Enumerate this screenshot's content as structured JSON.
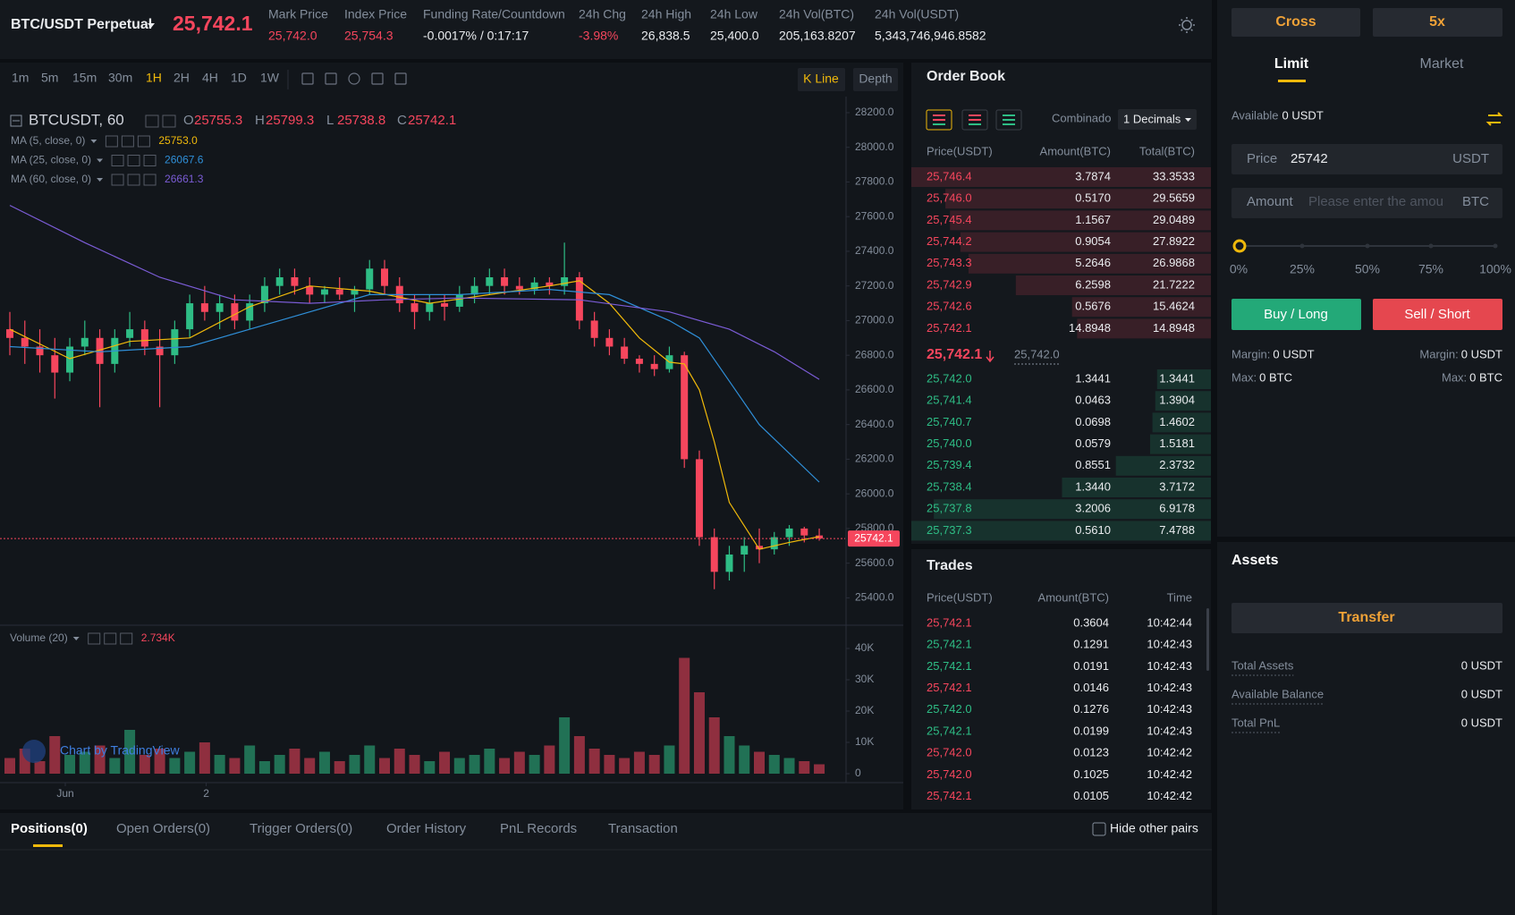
{
  "header": {
    "symbol": "BTC/USDT Perpetual",
    "last_price": "25,742.1",
    "stats": [
      {
        "label": "Mark Price",
        "value": "25,742.0",
        "color": "#f6465d"
      },
      {
        "label": "Index Price",
        "value": "25,754.3",
        "color": "#f6465d"
      },
      {
        "label": "Funding Rate/Countdown",
        "value": "-0.0017% / 0:17:17",
        "color": "#eaecef"
      },
      {
        "label": "24h Chg",
        "value": "-3.98%",
        "color": "#f6465d"
      },
      {
        "label": "24h High",
        "value": "26,838.5",
        "color": "#eaecef"
      },
      {
        "label": "24h Low",
        "value": "25,400.0",
        "color": "#eaecef"
      },
      {
        "label": "24h Vol(BTC)",
        "value": "205,163.8207",
        "color": "#eaecef"
      },
      {
        "label": "24h Vol(USDT)",
        "value": "5,343,746,946.8582",
        "color": "#eaecef"
      }
    ]
  },
  "toolbar": {
    "intervals": [
      "1m",
      "5m",
      "15m",
      "30m",
      "1H",
      "2H",
      "4H",
      "1D",
      "1W"
    ],
    "active_interval": "1H",
    "views": [
      "K Line",
      "Depth"
    ]
  },
  "chart_data": {
    "type": "candlestick",
    "symbol_label": "BTCUSDT, 60",
    "ohlc_legend": [
      {
        "key": "O",
        "value": "25755.3"
      },
      {
        "key": "H",
        "value": "25799.3"
      },
      {
        "key": "L",
        "value": "25738.8"
      },
      {
        "key": "C",
        "value": "25742.1"
      }
    ],
    "up_color": "#2ebd85",
    "down_color": "#f6465d",
    "ylim": [
      25242,
      28334
    ],
    "yticks": [
      {
        "value": 28200,
        "label": "28200.0"
      },
      {
        "value": 28000,
        "label": "28000.0"
      },
      {
        "value": 27800,
        "label": "27800.0"
      },
      {
        "value": 27600,
        "label": "27600.0"
      },
      {
        "value": 27400,
        "label": "27400.0"
      },
      {
        "value": 27200,
        "label": "27200.0"
      },
      {
        "value": 27000,
        "label": "27000.0"
      },
      {
        "value": 26800,
        "label": "26800.0"
      },
      {
        "value": 26600,
        "label": "26600.0"
      },
      {
        "value": 26400,
        "label": "26400.0"
      },
      {
        "value": 26200,
        "label": "26200.0"
      },
      {
        "value": 26000,
        "label": "26000.0"
      },
      {
        "value": 25800,
        "label": "25800.0"
      },
      {
        "value": 25600,
        "label": "25600.0"
      },
      {
        "value": 25400,
        "label": "25400.0"
      }
    ],
    "xticks": [
      {
        "value": 3.7,
        "label": "Jun"
      },
      {
        "value": 13.1,
        "label": "2"
      }
    ],
    "last_price": 25742.1,
    "last_price_label": "25742.1",
    "ohlc": [
      [
        26950,
        27050,
        26800,
        26900
      ],
      [
        26900,
        27000,
        26750,
        26850
      ],
      [
        26850,
        26950,
        26700,
        26800
      ],
      [
        26800,
        26900,
        26550,
        26700
      ],
      [
        26700,
        26900,
        26650,
        26850
      ],
      [
        26850,
        27000,
        26800,
        26900
      ],
      [
        26900,
        26950,
        26500,
        26750
      ],
      [
        26750,
        26950,
        26700,
        26900
      ],
      [
        26900,
        27050,
        26850,
        26950
      ],
      [
        26950,
        27000,
        26800,
        26850
      ],
      [
        26850,
        26950,
        26500,
        26800
      ],
      [
        26800,
        27000,
        26750,
        26950
      ],
      [
        26950,
        27150,
        26900,
        27100
      ],
      [
        27100,
        27200,
        27000,
        27050
      ],
      [
        27050,
        27150,
        26950,
        27100
      ],
      [
        27100,
        27150,
        26950,
        27000
      ],
      [
        27000,
        27150,
        26950,
        27100
      ],
      [
        27100,
        27250,
        27050,
        27200
      ],
      [
        27200,
        27300,
        27150,
        27250
      ],
      [
        27250,
        27300,
        27150,
        27200
      ],
      [
        27200,
        27250,
        27100,
        27150
      ],
      [
        27150,
        27200,
        27100,
        27180
      ],
      [
        27180,
        27250,
        27120,
        27150
      ],
      [
        27150,
        27200,
        27050,
        27180
      ],
      [
        27180,
        27350,
        27150,
        27300
      ],
      [
        27300,
        27350,
        27150,
        27200
      ],
      [
        27200,
        27250,
        27050,
        27100
      ],
      [
        27100,
        27150,
        26950,
        27050
      ],
      [
        27050,
        27150,
        27000,
        27100
      ],
      [
        27100,
        27150,
        27000,
        27080
      ],
      [
        27080,
        27200,
        27050,
        27150
      ],
      [
        27150,
        27250,
        27100,
        27200
      ],
      [
        27200,
        27300,
        27150,
        27250
      ],
      [
        27250,
        27300,
        27150,
        27200
      ],
      [
        27200,
        27250,
        27150,
        27180
      ],
      [
        27180,
        27250,
        27150,
        27220
      ],
      [
        27220,
        27250,
        27150,
        27200
      ],
      [
        27200,
        27450,
        27150,
        27250
      ],
      [
        27250,
        27280,
        26950,
        27000
      ],
      [
        27000,
        27050,
        26850,
        26900
      ],
      [
        26900,
        26950,
        26800,
        26850
      ],
      [
        26850,
        26900,
        26750,
        26780
      ],
      [
        26780,
        26800,
        26700,
        26750
      ],
      [
        26750,
        26800,
        26680,
        26720
      ],
      [
        26720,
        26850,
        26700,
        26800
      ],
      [
        26800,
        26820,
        26150,
        26200
      ],
      [
        26200,
        26250,
        25700,
        25750
      ],
      [
        25750,
        25800,
        25450,
        25550
      ],
      [
        25550,
        25700,
        25500,
        25650
      ],
      [
        25650,
        25750,
        25550,
        25700
      ],
      [
        25700,
        25800,
        25600,
        25680
      ],
      [
        25680,
        25780,
        25650,
        25750
      ],
      [
        25750,
        25820,
        25700,
        25800
      ],
      [
        25800,
        25810,
        25720,
        25760
      ],
      [
        25760,
        25800,
        25730,
        25742.1
      ]
    ],
    "lines": [
      {
        "name": "MA (5, close, 0)",
        "color": "#f0b90b",
        "last_label": "25753.0",
        "x": [
          0,
          4,
          8,
          12,
          16,
          20,
          24,
          28,
          32,
          36,
          38,
          40,
          42,
          44,
          45,
          46,
          47,
          48,
          50,
          52,
          54
        ],
        "values": [
          26950,
          26780,
          26880,
          26900,
          27080,
          27200,
          27170,
          27100,
          27150,
          27200,
          27230,
          27100,
          26900,
          26760,
          26750,
          26600,
          26300,
          25950,
          25680,
          25720,
          25753
        ]
      },
      {
        "name": "MA (25, close, 0)",
        "color": "#2f8fd8",
        "last_label": "26067.6",
        "x": [
          0,
          6,
          12,
          18,
          24,
          30,
          36,
          40,
          44,
          46,
          48,
          50,
          54
        ],
        "values": [
          26850,
          26820,
          26850,
          27000,
          27150,
          27150,
          27180,
          27150,
          27000,
          26900,
          26650,
          26400,
          26068
        ]
      },
      {
        "name": "MA (60, close, 0)",
        "color": "#7b5cd6",
        "last_label": "26661.3",
        "x": [
          0,
          5,
          10,
          15,
          20,
          25,
          30,
          38,
          44,
          48,
          51,
          54
        ],
        "values": [
          27665,
          27450,
          27250,
          27120,
          27100,
          27120,
          27130,
          27120,
          27050,
          26950,
          26820,
          26661
        ]
      }
    ],
    "volume": {
      "name": "Volume (20)",
      "last_label": "2.734K",
      "ylim": [
        0,
        46000
      ],
      "yticks": [
        {
          "value": 40000,
          "label": "40K"
        },
        {
          "value": 30000,
          "label": "30K"
        },
        {
          "value": 20000,
          "label": "20K"
        },
        {
          "value": 10000,
          "label": "10K"
        },
        0
      ],
      "values": [
        5000,
        8000,
        4000,
        12000,
        6000,
        7000,
        9000,
        5000,
        14000,
        6000,
        8000,
        5000,
        7000,
        10000,
        6000,
        5000,
        9000,
        4000,
        6000,
        8000,
        5000,
        7000,
        4000,
        6000,
        9000,
        5000,
        8000,
        6000,
        4000,
        7000,
        5000,
        6000,
        8000,
        5000,
        7000,
        6000,
        9000,
        18000,
        12000,
        8000,
        6000,
        5000,
        7000,
        6000,
        9000,
        37000,
        26000,
        18000,
        12000,
        9000,
        7000,
        6000,
        5000,
        4000,
        3000
      ]
    },
    "watermark": "Chart by TradingView"
  },
  "order_book": {
    "title": "Order Book",
    "mode_label": "Combinado",
    "decimals": "1 Decimals",
    "columns": [
      "Price(USDT)",
      "Amount(BTC)",
      "Total(BTC)"
    ],
    "asks": [
      {
        "price": "25,746.4",
        "amount": "3.7874",
        "total": 33.3533
      },
      {
        "price": "25,746.0",
        "amount": "0.5170",
        "total": 29.5659
      },
      {
        "price": "25,745.4",
        "amount": "1.1567",
        "total": 29.0489
      },
      {
        "price": "25,744.2",
        "amount": "0.9054",
        "total": 27.8922
      },
      {
        "price": "25,743.3",
        "amount": "5.2646",
        "total": 26.9868
      },
      {
        "price": "25,742.9",
        "amount": "6.2598",
        "total": 21.7222
      },
      {
        "price": "25,742.6",
        "amount": "0.5676",
        "total": 15.4624
      },
      {
        "price": "25,742.1",
        "amount": "14.8948",
        "total": 14.8948
      }
    ],
    "mid": {
      "price": "25,742.1",
      "mark": "25,742.0"
    },
    "bids": [
      {
        "price": "25,742.0",
        "amount": "1.3441",
        "total": 1.3441
      },
      {
        "price": "25,741.4",
        "amount": "0.0463",
        "total": 1.3904
      },
      {
        "price": "25,740.7",
        "amount": "0.0698",
        "total": 1.4602
      },
      {
        "price": "25,740.0",
        "amount": "0.0579",
        "total": 1.5181
      },
      {
        "price": "25,739.4",
        "amount": "0.8551",
        "total": 2.3732
      },
      {
        "price": "25,738.4",
        "amount": "1.3440",
        "total": 3.7172
      },
      {
        "price": "25,737.8",
        "amount": "3.2006",
        "total": 6.9178
      },
      {
        "price": "25,737.3",
        "amount": "0.5610",
        "total": 7.4788
      }
    ]
  },
  "trades": {
    "title": "Trades",
    "columns": [
      "Price(USDT)",
      "Amount(BTC)",
      "Time"
    ],
    "rows": [
      {
        "price": "25,742.1",
        "amount": "0.3604",
        "time": "10:42:44",
        "side": "sell"
      },
      {
        "price": "25,742.1",
        "amount": "0.1291",
        "time": "10:42:43",
        "side": "buy"
      },
      {
        "price": "25,742.1",
        "amount": "0.0191",
        "time": "10:42:43",
        "side": "buy"
      },
      {
        "price": "25,742.1",
        "amount": "0.0146",
        "time": "10:42:43",
        "side": "sell"
      },
      {
        "price": "25,742.0",
        "amount": "0.1276",
        "time": "10:42:43",
        "side": "buy"
      },
      {
        "price": "25,742.1",
        "amount": "0.0199",
        "time": "10:42:43",
        "side": "buy"
      },
      {
        "price": "25,742.0",
        "amount": "0.0123",
        "time": "10:42:42",
        "side": "sell"
      },
      {
        "price": "25,742.0",
        "amount": "0.1025",
        "time": "10:42:42",
        "side": "sell"
      },
      {
        "price": "25,742.1",
        "amount": "0.0105",
        "time": "10:42:42",
        "side": "sell"
      }
    ]
  },
  "bottom": {
    "tabs": [
      "Positions(0)",
      "Open Orders(0)",
      "Trigger Orders(0)",
      "Order History",
      "PnL Records",
      "Transaction"
    ],
    "hide_pairs": "Hide other pairs"
  },
  "order_form": {
    "margin_mode": "Cross",
    "leverage": "5x",
    "tabs": [
      "Limit",
      "Market"
    ],
    "available_label": "Available",
    "available_value": "0 USDT",
    "price_label": "Price",
    "price_value": "25742",
    "price_unit": "USDT",
    "amount_label": "Amount",
    "amount_placeholder": "Please enter the amou",
    "amount_unit": "BTC",
    "slider_marks": [
      "0%",
      "25%",
      "50%",
      "75%",
      "100%"
    ],
    "buy": "Buy / Long",
    "sell": "Sell / Short",
    "buy_info": [
      {
        "label": "Margin:",
        "value": "0 USDT"
      },
      {
        "label": "Max:",
        "value": "0 BTC"
      }
    ],
    "sell_info": [
      {
        "label": "Margin:",
        "value": "0 USDT"
      },
      {
        "label": "Max:",
        "value": "0 BTC"
      }
    ]
  },
  "assets": {
    "title": "Assets",
    "transfer": "Transfer",
    "rows": [
      {
        "label": "Total Assets",
        "value": "0 USDT"
      },
      {
        "label": "Available Balance",
        "value": "0 USDT"
      },
      {
        "label": "Total PnL",
        "value": "0 USDT"
      }
    ]
  }
}
